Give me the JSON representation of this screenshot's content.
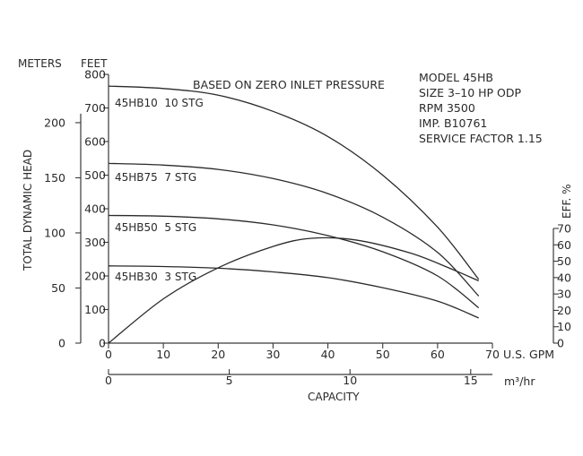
{
  "chart_data": {
    "type": "line",
    "note": "BASED ON ZERO INLET PRESSURE",
    "model_info": [
      "MODEL 45HB",
      "SIZE 3–10 HP ODP",
      "RPM 3500",
      "IMP. B10761",
      "SERVICE FACTOR 1.15"
    ],
    "y_left_meters": {
      "label": "METERS",
      "ticks": [
        0,
        50,
        100,
        150,
        200
      ]
    },
    "y_left_feet": {
      "label": "FEET",
      "range": [
        0,
        800
      ],
      "ticks": [
        0,
        100,
        200,
        300,
        400,
        500,
        600,
        700,
        800
      ]
    },
    "y_right": {
      "label": "EFF. %",
      "range": [
        0,
        70
      ],
      "ticks": [
        0,
        10,
        20,
        30,
        40,
        50,
        60,
        70
      ]
    },
    "x_gpm": {
      "label": "U.S. GPM",
      "range": [
        0,
        70
      ],
      "ticks": [
        0,
        10,
        20,
        30,
        40,
        50,
        60,
        70
      ]
    },
    "x_m3hr": {
      "label": "m³/hr",
      "ticks": [
        0,
        5,
        10,
        15
      ]
    },
    "x_title": "CAPACITY",
    "y_title": "TOTAL DYNAMIC HEAD",
    "series": [
      {
        "name": "45HB10  10 STG",
        "axis": "feet",
        "points": [
          [
            0,
            765
          ],
          [
            10,
            758
          ],
          [
            20,
            738
          ],
          [
            30,
            690
          ],
          [
            40,
            615
          ],
          [
            50,
            500
          ],
          [
            60,
            345
          ],
          [
            67.5,
            190
          ]
        ]
      },
      {
        "name": "45HB75  7 STG",
        "axis": "feet",
        "points": [
          [
            0,
            535
          ],
          [
            10,
            530
          ],
          [
            20,
            517
          ],
          [
            30,
            490
          ],
          [
            40,
            445
          ],
          [
            50,
            375
          ],
          [
            60,
            270
          ],
          [
            67.5,
            140
          ]
        ]
      },
      {
        "name": "45HB50  5 STG",
        "axis": "feet",
        "points": [
          [
            0,
            380
          ],
          [
            10,
            378
          ],
          [
            20,
            370
          ],
          [
            30,
            352
          ],
          [
            40,
            320
          ],
          [
            50,
            272
          ],
          [
            60,
            200
          ],
          [
            67.5,
            105
          ]
        ]
      },
      {
        "name": "45HB30  3 STG",
        "axis": "feet",
        "points": [
          [
            0,
            230
          ],
          [
            10,
            228
          ],
          [
            20,
            223
          ],
          [
            30,
            212
          ],
          [
            40,
            195
          ],
          [
            50,
            165
          ],
          [
            60,
            125
          ],
          [
            67.5,
            75
          ]
        ]
      },
      {
        "name": "",
        "axis": "eff",
        "points": [
          [
            0,
            0
          ],
          [
            10,
            27
          ],
          [
            20,
            46
          ],
          [
            30,
            59
          ],
          [
            37,
            64
          ],
          [
            45,
            63
          ],
          [
            55,
            55
          ],
          [
            62,
            46
          ],
          [
            67.5,
            38
          ]
        ]
      }
    ]
  }
}
